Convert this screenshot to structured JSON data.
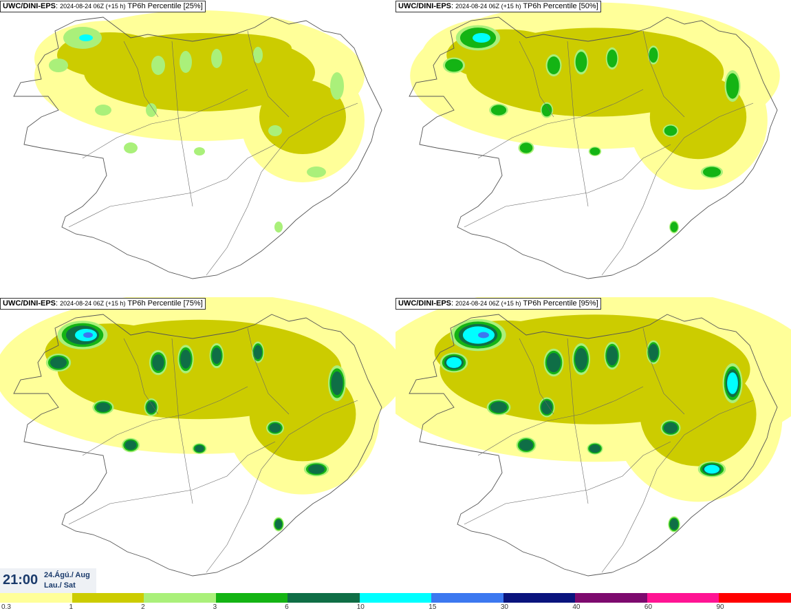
{
  "panels": [
    {
      "model": "UWC/DINI-EPS",
      "run": "2024-08-24 06Z (+15 h)",
      "field": "TP6h Percentile [25%]",
      "intensity": 0
    },
    {
      "model": "UWC/DINI-EPS",
      "run": "2024-08-24 06Z (+15 h)",
      "field": "TP6h Percentile [50%]",
      "intensity": 1
    },
    {
      "model": "UWC/DINI-EPS",
      "run": "2024-08-24 06Z (+15 h)",
      "field": "TP6h Percentile [75%]",
      "intensity": 2
    },
    {
      "model": "UWC/DINI-EPS",
      "run": "2024-08-24 06Z (+15 h)",
      "field": "TP6h Percentile [95%]",
      "intensity": 3
    }
  ],
  "valid_time": {
    "time": "21:00",
    "date_line1": "24.Ágú./ Aug",
    "date_line2": "Lau./ Sat"
  },
  "legend": {
    "colors": [
      "#ffff99",
      "#cccc00",
      "#aaf07a",
      "#14b414",
      "#0f6e46",
      "#00ffff",
      "#3c78f0",
      "#0a147d",
      "#7d0a6e",
      "#ff1493",
      "#ff0000"
    ],
    "labels": [
      "0.3",
      "1",
      "2",
      "3",
      "6",
      "10",
      "15",
      "30",
      "40",
      "60",
      "90"
    ]
  }
}
